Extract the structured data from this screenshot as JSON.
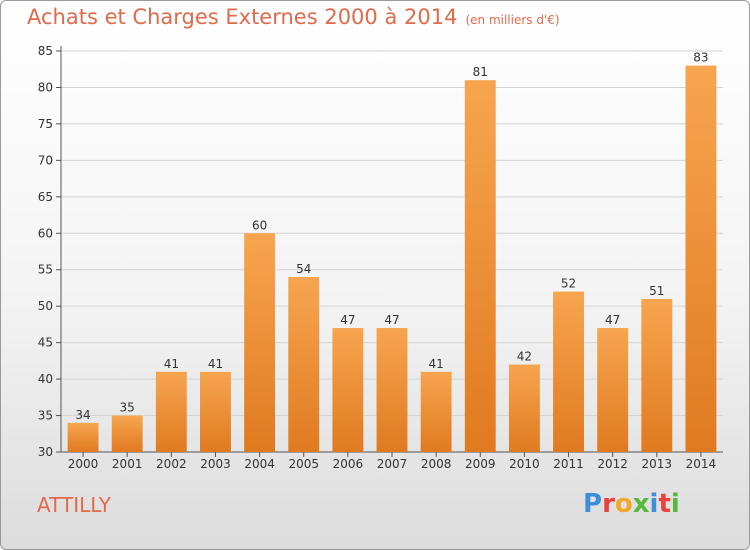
{
  "title": "Achats et Charges Externes 2000 à 2014",
  "subtitle": "(en milliers d'€)",
  "place": "ATTILLY",
  "logo_letters": [
    {
      "ch": "P",
      "color": "#3f8fd8"
    },
    {
      "ch": "r",
      "color": "#e8423a"
    },
    {
      "ch": "o",
      "color": "#f2a62b"
    },
    {
      "ch": "x",
      "color": "#55b93a"
    },
    {
      "ch": "i",
      "color": "#3f8fd8"
    },
    {
      "ch": "t",
      "color": "#e8423a"
    },
    {
      "ch": "i",
      "color": "#55b93a"
    }
  ],
  "chart_data": {
    "type": "bar",
    "title": "Achats et Charges Externes 2000 à 2014",
    "subtitle": "(en milliers d'€)",
    "categories": [
      "2000",
      "2001",
      "2002",
      "2003",
      "2004",
      "2005",
      "2006",
      "2007",
      "2008",
      "2009",
      "2010",
      "2011",
      "2012",
      "2013",
      "2014"
    ],
    "values": [
      34,
      35,
      41,
      41,
      60,
      54,
      47,
      47,
      41,
      81,
      42,
      52,
      47,
      51,
      83
    ],
    "ylim": [
      30,
      85
    ],
    "yticks": [
      30,
      35,
      40,
      45,
      50,
      55,
      60,
      65,
      70,
      75,
      80,
      85
    ],
    "grid": true,
    "bar_color": "#f08a30"
  }
}
